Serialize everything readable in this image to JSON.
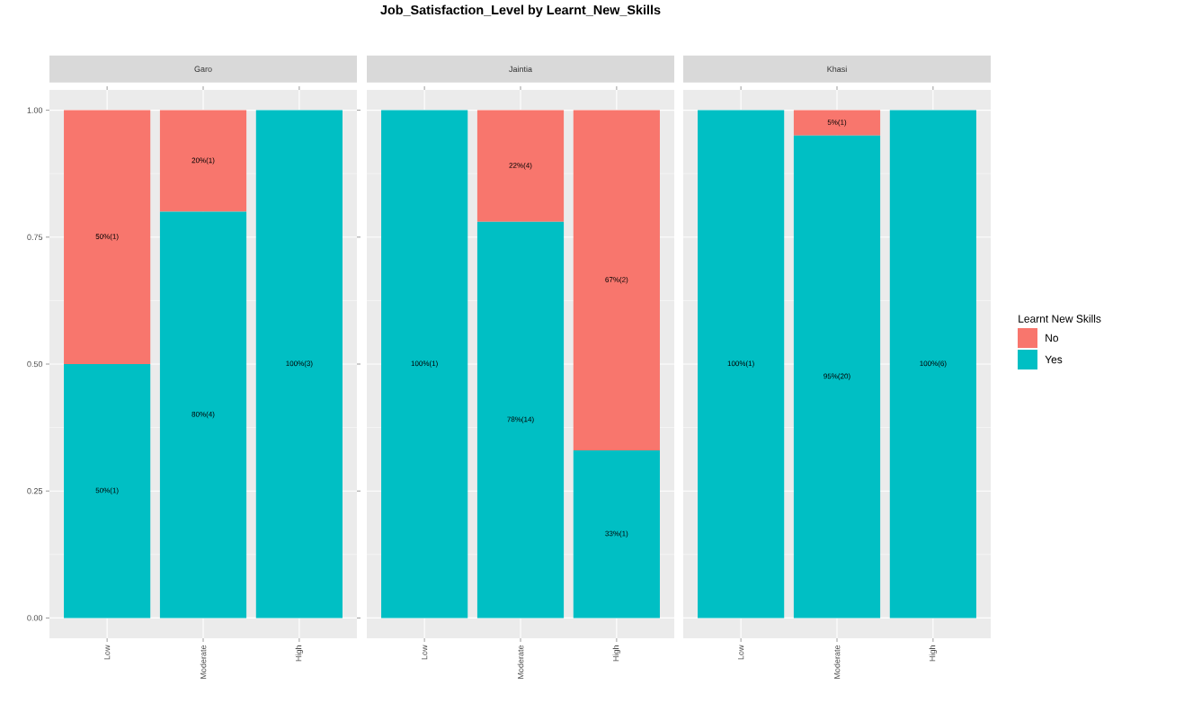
{
  "chart_data": [
    {
      "type": "bar",
      "subtitle": "Garo",
      "categories": [
        "Low",
        "Moderate",
        "High"
      ],
      "stacked": true,
      "grid": true,
      "ylim": [
        -0.04,
        1.04
      ],
      "yticks": [
        {
          "value": 0,
          "label": "0.00"
        },
        {
          "value": 0.25,
          "label": "0.25"
        },
        {
          "value": 0.5,
          "label": "0.50"
        },
        {
          "value": 0.75,
          "label": "0.75"
        },
        {
          "value": 1,
          "label": "1.00"
        }
      ],
      "series": [
        {
          "color": "#00bfc4",
          "values": [
            0.5,
            0.8,
            1.0
          ],
          "value_labels": [
            "50%(1)",
            "80%(4)",
            "100%(3)"
          ]
        },
        {
          "color": "#f8766d",
          "values": [
            0.5,
            0.2,
            0
          ],
          "value_labels": [
            "50%(1)",
            "20%(1)",
            null
          ]
        }
      ]
    },
    {
      "type": "bar",
      "title": "Job_Satisfaction_Level by Learnt_New_Skills",
      "subtitle": "Jaintia",
      "categories": [
        "Low",
        "Moderate",
        "High"
      ],
      "stacked": true,
      "grid": true,
      "tick_labels": "x",
      "ylim": [
        -0.04,
        1.04
      ],
      "yticks": [
        {
          "value": 0,
          "label": null
        },
        {
          "value": 0.25,
          "label": null
        },
        {
          "value": 0.5,
          "label": null
        },
        {
          "value": 0.75,
          "label": null
        },
        {
          "value": 1,
          "label": null
        }
      ],
      "series": [
        {
          "color": "#00bfc4",
          "values": [
            1.0,
            0.78,
            0.33
          ],
          "value_labels": [
            "100%(1)",
            "78%(14)",
            "33%(1)"
          ]
        },
        {
          "color": "#f8766d",
          "values": [
            0,
            0.22,
            0.67
          ],
          "value_labels": [
            null,
            "22%(4)",
            "67%(2)"
          ]
        }
      ]
    },
    {
      "type": "bar",
      "subtitle": "Khasi",
      "categories": [
        "Low",
        "Moderate",
        "High"
      ],
      "stacked": true,
      "grid": true,
      "legend": "right",
      "legend_title": "Learnt New Skills",
      "tick_labels": "x",
      "ylim": [
        -0.04,
        1.04
      ],
      "yticks": [
        {
          "value": 0,
          "label": null
        },
        {
          "value": 0.25,
          "label": null
        },
        {
          "value": 0.5,
          "label": null
        },
        {
          "value": 0.75,
          "label": null
        },
        {
          "value": 1,
          "label": null
        }
      ],
      "series": [
        {
          "name": "Yes",
          "color": "#00bfc4",
          "values": [
            1.0,
            0.95,
            1.0
          ],
          "value_labels": [
            "100%(1)",
            "95%(20)",
            "100%(6)"
          ]
        },
        {
          "name": "No",
          "color": "#f8766d",
          "values": [
            0,
            0.05,
            0
          ],
          "value_labels": [
            null,
            "5%(1)",
            null
          ]
        }
      ]
    }
  ]
}
